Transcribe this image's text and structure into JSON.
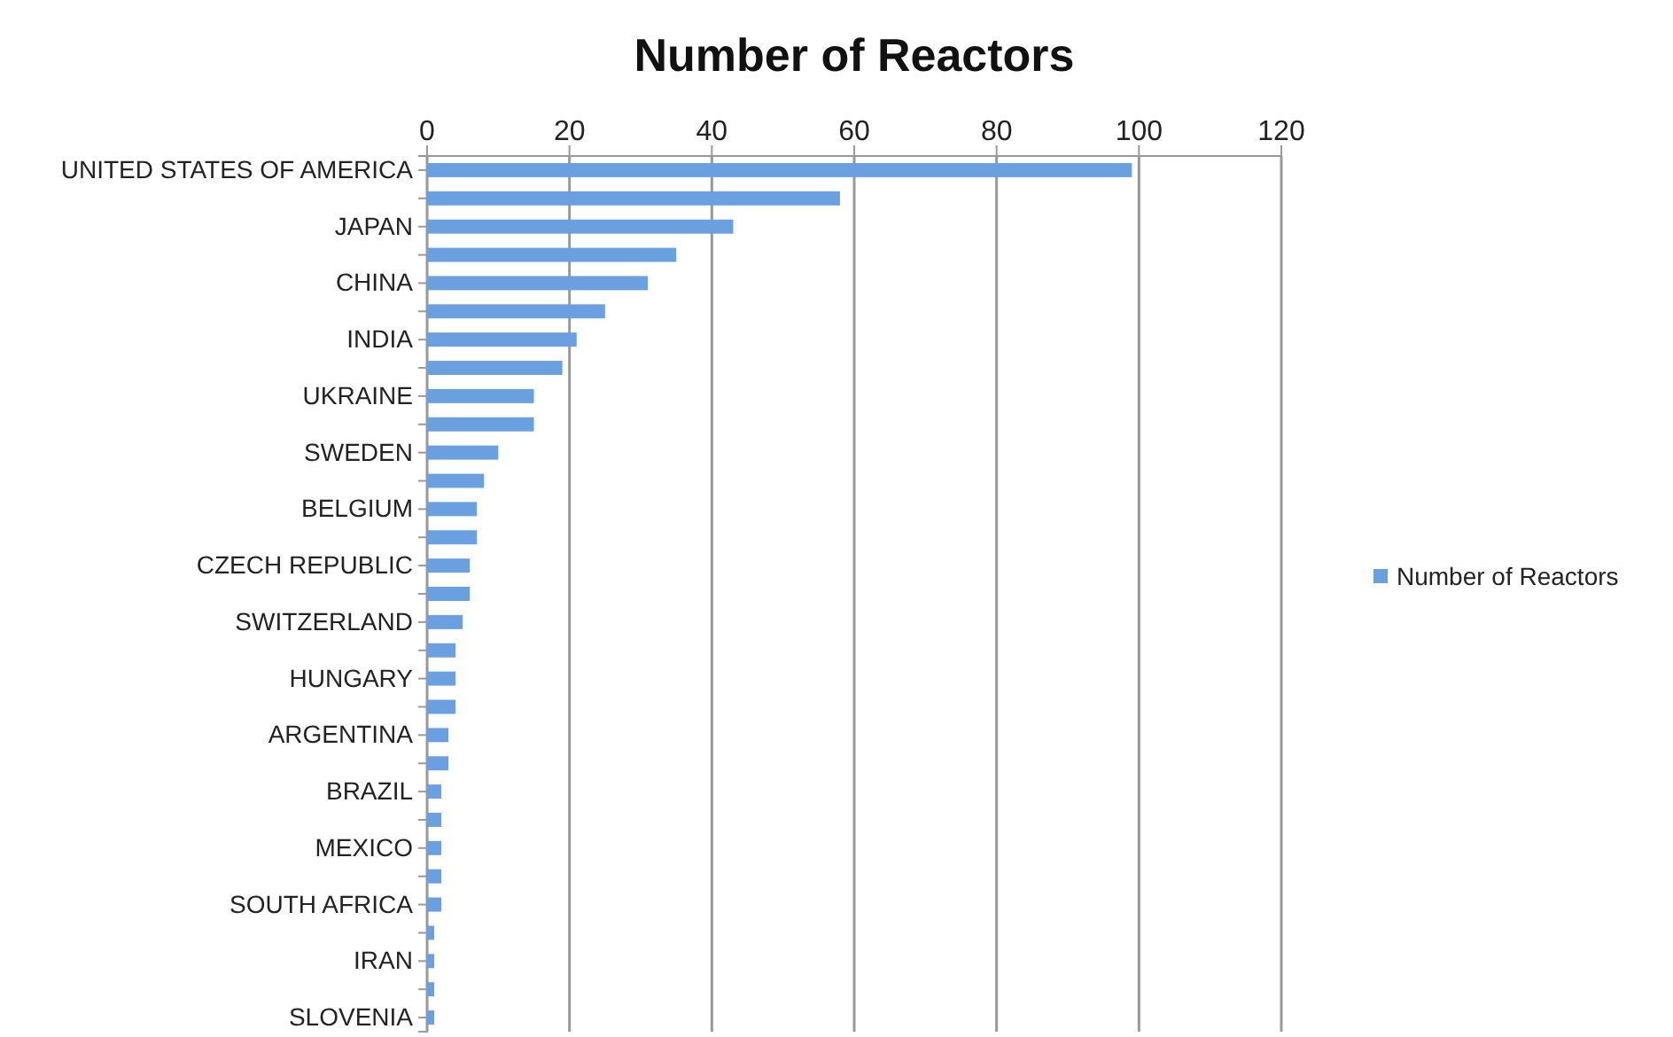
{
  "chart_data": {
    "type": "bar",
    "orientation": "horizontal",
    "title": "Number of Reactors",
    "categories": [
      "UNITED STATES OF AMERICA",
      null,
      "JAPAN",
      null,
      "CHINA",
      null,
      "INDIA",
      null,
      "UKRAINE",
      null,
      "SWEDEN",
      null,
      "BELGIUM",
      null,
      "CZECH REPUBLIC",
      null,
      "SWITZERLAND",
      null,
      "HUNGARY",
      null,
      "ARGENTINA",
      null,
      "BRAZIL",
      null,
      "MEXICO",
      null,
      "SOUTH AFRICA",
      null,
      "IRAN",
      null,
      "SLOVENIA"
    ],
    "series": [
      {
        "name": "Number of Reactors",
        "color": "#6a9fe0",
        "values": [
          99,
          58,
          43,
          35,
          31,
          25,
          21,
          19,
          15,
          15,
          10,
          8,
          7,
          7,
          6,
          6,
          5,
          4,
          4,
          4,
          3,
          3,
          2,
          2,
          2,
          2,
          2,
          1,
          1,
          1,
          1
        ]
      }
    ],
    "xlim": [
      0,
      120
    ],
    "xticks": [
      0,
      20,
      40,
      60,
      80,
      100,
      120
    ],
    "grid": "x",
    "legend": "right"
  }
}
